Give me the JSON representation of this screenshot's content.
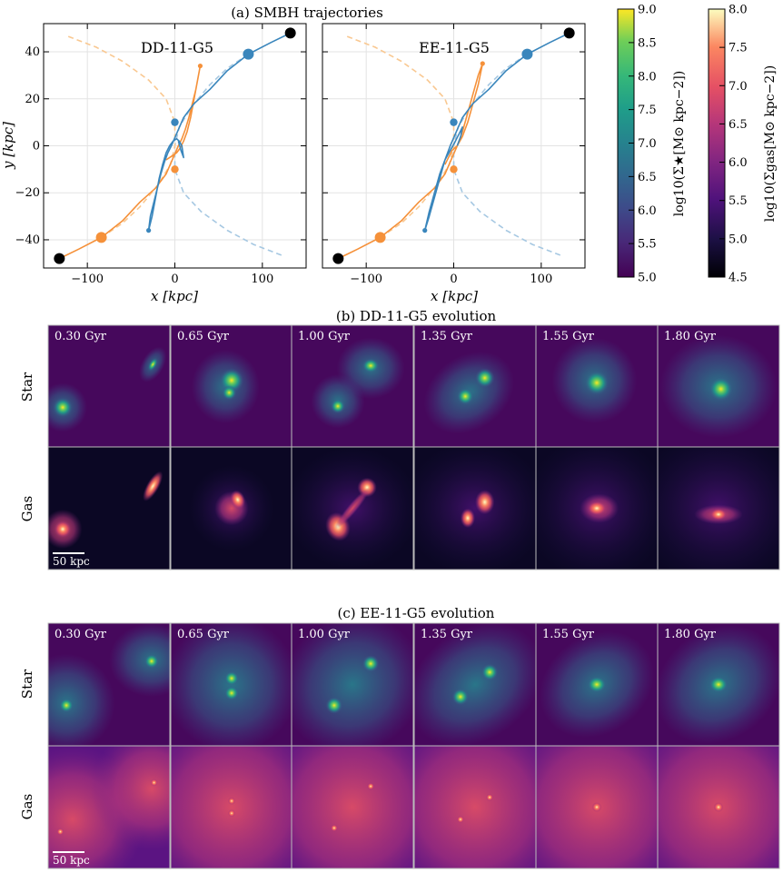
{
  "figure": {
    "panel_a_title": "(a) SMBH trajectories",
    "panel_b_title": "(b) DD-11-G5 evolution",
    "panel_c_title": "(c) EE-11-G5 evolution",
    "row_labels": {
      "star": "Star",
      "gas": "Gas"
    },
    "times": [
      "0.30 Gyr",
      "0.65 Gyr",
      "1.00 Gyr",
      "1.35 Gyr",
      "1.55 Gyr",
      "1.80 Gyr"
    ],
    "scalebar_label": "50 kpc"
  },
  "colors": {
    "blue": "#3a86bc",
    "orange": "#f5913a",
    "blue_dashed": "#a6c8e2",
    "orange_dashed": "#f9c891"
  },
  "chart_data": [
    {
      "type": "line",
      "name": "DD-11-G5",
      "xlabel": "x [kpc]",
      "ylabel": "y [kpc]",
      "xlim": [
        -150,
        150
      ],
      "ylim": [
        -52,
        52
      ],
      "xticks": [
        -100,
        0,
        100
      ],
      "yticks": [
        -40,
        -20,
        0,
        20,
        40
      ],
      "series": [
        {
          "name": "SMBH 1 (blue)",
          "style": "solid",
          "x": [
            132,
            110,
            84,
            60,
            40,
            22,
            10,
            3,
            -4,
            -8,
            -12,
            -16,
            -20,
            -24,
            -28,
            -30,
            -26,
            -22,
            -18,
            -14,
            -10,
            -6,
            -2,
            2,
            5,
            8,
            10,
            7,
            4
          ],
          "y": [
            48,
            44,
            39,
            32,
            24,
            18,
            12,
            6,
            0,
            -3,
            -7,
            -12,
            -18,
            -24,
            -30,
            -36,
            -30,
            -22,
            -14,
            -8,
            -3,
            0,
            2,
            3,
            2,
            0,
            -5,
            -2,
            2
          ]
        },
        {
          "name": "SMBH 2 (orange)",
          "style": "solid",
          "x": [
            -132,
            -110,
            -84,
            -60,
            -40,
            -22,
            -10,
            -3,
            4,
            8,
            12,
            16,
            20,
            24,
            27,
            29,
            26,
            22,
            18,
            14,
            10,
            6,
            2,
            -2,
            -6,
            -10
          ],
          "y": [
            -48,
            -44,
            -39,
            -32,
            -24,
            -18,
            -12,
            -6,
            0,
            3,
            7,
            12,
            18,
            24,
            30,
            34,
            28,
            20,
            12,
            6,
            2,
            -1,
            -3,
            -4,
            -5,
            -6
          ]
        },
        {
          "name": "Blue initial orbit",
          "style": "dashed",
          "x": [
            84,
            60,
            40,
            20,
            5,
            0,
            0,
            10,
            30,
            60,
            90,
            125
          ],
          "y": [
            39,
            33,
            26,
            17,
            8,
            0,
            -10,
            -20,
            -28,
            -36,
            -42,
            -47
          ]
        },
        {
          "name": "Orange initial orbit",
          "style": "dashed",
          "x": [
            -84,
            -60,
            -40,
            -20,
            -5,
            0,
            0,
            -10,
            -30,
            -60,
            -90,
            -125
          ],
          "y": [
            -39,
            -33,
            -26,
            -17,
            -8,
            0,
            10,
            20,
            28,
            36,
            42,
            47
          ]
        }
      ],
      "markers": [
        {
          "name": "start blue",
          "x": 132,
          "y": 48,
          "color": "black"
        },
        {
          "name": "start orange",
          "x": -132,
          "y": -48,
          "color": "black"
        },
        {
          "name": "blue big",
          "x": 84,
          "y": 39,
          "color": "blue"
        },
        {
          "name": "orange big",
          "x": -84,
          "y": -39,
          "color": "orange"
        },
        {
          "name": "blue mid",
          "x": 0,
          "y": 10,
          "color": "blue"
        },
        {
          "name": "orange mid",
          "x": 0,
          "y": -10,
          "color": "orange"
        },
        {
          "name": "blue end",
          "x": -30,
          "y": -36,
          "color": "blue"
        },
        {
          "name": "orange end",
          "x": 29,
          "y": 34,
          "color": "orange"
        }
      ]
    },
    {
      "type": "line",
      "name": "EE-11-G5",
      "xlabel": "x [kpc]",
      "ylabel": "y [kpc]",
      "xlim": [
        -150,
        150
      ],
      "ylim": [
        -52,
        52
      ],
      "xticks": [
        -100,
        0,
        100
      ],
      "yticks": [
        -40,
        -20,
        0,
        20,
        40
      ],
      "series": [
        {
          "name": "SMBH 1 (blue)",
          "style": "solid",
          "x": [
            132,
            110,
            84,
            60,
            40,
            22,
            10,
            3,
            -4,
            -10,
            -16,
            -22,
            -28,
            -33,
            -28,
            -22,
            -16,
            -10,
            -4,
            2,
            6,
            10,
            8,
            4
          ],
          "y": [
            48,
            44,
            39,
            32,
            24,
            18,
            12,
            6,
            0,
            -6,
            -14,
            -22,
            -30,
            -36,
            -28,
            -20,
            -12,
            -6,
            -2,
            2,
            5,
            8,
            4,
            0
          ]
        },
        {
          "name": "SMBH 2 (orange)",
          "style": "solid",
          "x": [
            -132,
            -110,
            -84,
            -60,
            -40,
            -22,
            -10,
            -3,
            4,
            10,
            16,
            22,
            28,
            33,
            28,
            22,
            16,
            10,
            4,
            -2,
            -6,
            -10
          ],
          "y": [
            -48,
            -44,
            -39,
            -32,
            -24,
            -18,
            -12,
            -6,
            0,
            6,
            14,
            22,
            30,
            35,
            26,
            18,
            10,
            4,
            0,
            -2,
            -5,
            -8
          ]
        },
        {
          "name": "Blue initial orbit",
          "style": "dashed",
          "x": [
            84,
            60,
            40,
            20,
            5,
            0,
            0,
            10,
            30,
            60,
            90,
            125
          ],
          "y": [
            39,
            33,
            26,
            17,
            8,
            0,
            -10,
            -20,
            -28,
            -36,
            -42,
            -47
          ]
        },
        {
          "name": "Orange initial orbit",
          "style": "dashed",
          "x": [
            -84,
            -60,
            -40,
            -20,
            -5,
            0,
            0,
            -10,
            -30,
            -60,
            -90,
            -125
          ],
          "y": [
            -39,
            -33,
            -26,
            -17,
            -8,
            0,
            10,
            20,
            28,
            36,
            42,
            47
          ]
        }
      ],
      "markers": [
        {
          "name": "start blue",
          "x": 132,
          "y": 48,
          "color": "black"
        },
        {
          "name": "start orange",
          "x": -132,
          "y": -48,
          "color": "black"
        },
        {
          "name": "blue big",
          "x": 84,
          "y": 39,
          "color": "blue"
        },
        {
          "name": "orange big",
          "x": -84,
          "y": -39,
          "color": "orange"
        },
        {
          "name": "blue mid",
          "x": 0,
          "y": 10,
          "color": "blue"
        },
        {
          "name": "orange mid",
          "x": 0,
          "y": -10,
          "color": "orange"
        },
        {
          "name": "blue end",
          "x": -33,
          "y": -36,
          "color": "blue"
        },
        {
          "name": "orange end",
          "x": 33,
          "y": 35,
          "color": "orange"
        }
      ]
    },
    {
      "type": "heatmap",
      "name": "colorbar-stellar",
      "label": "log10(Σ★[M⊙ kpc−2])",
      "colormap": "viridis",
      "range": [
        5.0,
        9.0
      ],
      "ticks": [
        "5.0",
        "5.5",
        "6.0",
        "6.5",
        "7.0",
        "7.5",
        "8.0",
        "8.5",
        "9.0"
      ]
    },
    {
      "type": "heatmap",
      "name": "colorbar-gas",
      "label": "log10(Σgas[M⊙ kpc−2])",
      "colormap": "plasma",
      "range": [
        4.5,
        8.0
      ],
      "ticks": [
        "4.5",
        "5.0",
        "5.5",
        "6.0",
        "6.5",
        "7.0",
        "7.5",
        "8.0"
      ]
    }
  ]
}
